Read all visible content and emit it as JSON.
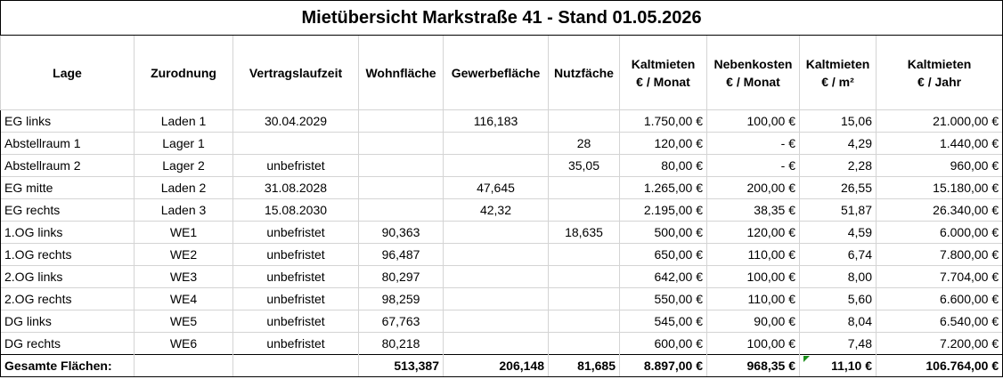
{
  "title": "Mietübersicht Markstraße 41 - Stand 01.05.2026",
  "headers": [
    [
      "Lage"
    ],
    [
      "Zurodnung"
    ],
    [
      "Vertragslaufzeit"
    ],
    [
      "Wohnfläche"
    ],
    [
      "Gewerbefläche"
    ],
    [
      "Nutzfäche"
    ],
    [
      "Kaltmieten",
      "€ / Monat"
    ],
    [
      "Nebenkosten",
      "€ / Monat"
    ],
    [
      "Kaltmieten",
      "€ / m²"
    ],
    [
      "Kaltmieten",
      "€ / Jahr"
    ]
  ],
  "rows": [
    [
      "EG links",
      "Laden 1",
      "30.04.2029",
      "",
      "116,183",
      "",
      "1.750,00 €",
      "100,00 €",
      "15,06",
      "21.000,00 €"
    ],
    [
      "Abstellraum 1",
      "Lager 1",
      "",
      "",
      "",
      "28",
      "120,00 €",
      "-      €",
      "4,29",
      "1.440,00 €"
    ],
    [
      "Abstellraum 2",
      "Lager 2",
      "unbefristet",
      "",
      "",
      "35,05",
      "80,00 €",
      "-      €",
      "2,28",
      "960,00 €"
    ],
    [
      "EG mitte",
      "Laden 2",
      "31.08.2028",
      "",
      "47,645",
      "",
      "1.265,00 €",
      "200,00 €",
      "26,55",
      "15.180,00 €"
    ],
    [
      "EG rechts",
      "Laden 3",
      "15.08.2030",
      "",
      "42,32",
      "",
      "2.195,00 €",
      "38,35 €",
      "51,87",
      "26.340,00 €"
    ],
    [
      "1.OG links",
      "WE1",
      "unbefristet",
      "90,363",
      "",
      "18,635",
      "500,00 €",
      "120,00 €",
      "4,59",
      "6.000,00 €"
    ],
    [
      "1.OG rechts",
      "WE2",
      "unbefristet",
      "96,487",
      "",
      "",
      "650,00 €",
      "110,00 €",
      "6,74",
      "7.800,00 €"
    ],
    [
      "2.OG links",
      "WE3",
      "unbefristet",
      "80,297",
      "",
      "",
      "642,00 €",
      "100,00 €",
      "8,00",
      "7.704,00 €"
    ],
    [
      "2.OG rechts",
      "WE4",
      "unbefristet",
      "98,259",
      "",
      "",
      "550,00 €",
      "110,00 €",
      "5,60",
      "6.600,00 €"
    ],
    [
      "DG links",
      "WE5",
      "unbefristet",
      "67,763",
      "",
      "",
      "545,00 €",
      "90,00 €",
      "8,04",
      "6.540,00 €"
    ],
    [
      "DG rechts",
      "WE6",
      "unbefristet",
      "80,218",
      "",
      "",
      "600,00 €",
      "100,00 €",
      "7,48",
      "7.200,00 €"
    ]
  ],
  "total": [
    "Gesamte Flächen:",
    "",
    "",
    "513,387",
    "206,148",
    "81,685",
    "8.897,00 €",
    "968,35 €",
    "11,10 €",
    "106.764,00 €"
  ]
}
